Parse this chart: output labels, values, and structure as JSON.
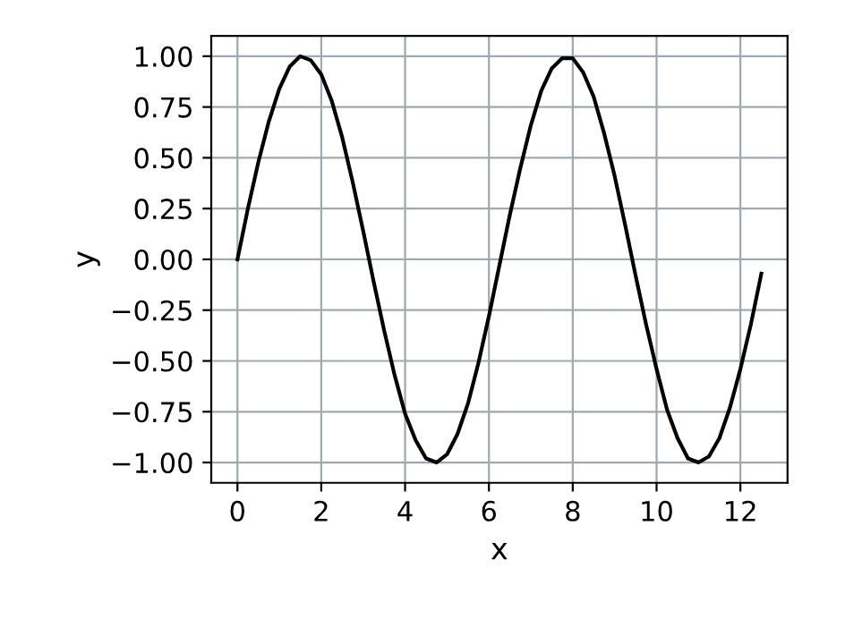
{
  "chart_data": {
    "type": "line",
    "xlabel": "x",
    "ylabel": "y",
    "x": [
      0,
      0.25,
      0.5,
      0.75,
      1,
      1.25,
      1.5,
      1.75,
      2,
      2.25,
      2.5,
      2.75,
      3,
      3.25,
      3.5,
      3.75,
      4,
      4.25,
      4.5,
      4.75,
      5,
      5.25,
      5.5,
      5.75,
      6,
      6.25,
      6.5,
      6.75,
      7,
      7.25,
      7.5,
      7.75,
      8,
      8.25,
      8.5,
      8.75,
      9,
      9.25,
      9.5,
      9.75,
      10,
      10.25,
      10.5,
      10.75,
      11,
      11.25,
      11.5,
      11.75,
      12,
      12.25,
      12.5
    ],
    "series": [
      {
        "color": "#000000",
        "values": [
          0,
          0.25,
          0.48,
          0.68,
          0.84,
          0.95,
          1.0,
          0.98,
          0.91,
          0.78,
          0.6,
          0.38,
          0.14,
          -0.11,
          -0.35,
          -0.57,
          -0.76,
          -0.89,
          -0.98,
          -1.0,
          -0.96,
          -0.86,
          -0.71,
          -0.51,
          -0.28,
          -0.03,
          0.22,
          0.45,
          0.66,
          0.83,
          0.94,
          0.99,
          0.99,
          0.92,
          0.8,
          0.62,
          0.41,
          0.17,
          -0.08,
          -0.32,
          -0.54,
          -0.74,
          -0.88,
          -0.98,
          -1.0,
          -0.97,
          -0.88,
          -0.73,
          -0.54,
          -0.32,
          -0.07
        ]
      }
    ],
    "xlim": [
      -0.625,
      13.125
    ],
    "ylim": [
      -1.1,
      1.1
    ],
    "xticks": [
      0,
      2,
      4,
      6,
      8,
      10,
      12
    ],
    "yticks": [
      {
        "value": -1,
        "label": "−1.00"
      },
      {
        "value": -0.75,
        "label": "−0.75"
      },
      {
        "value": -0.5,
        "label": "−0.50"
      },
      {
        "value": -0.25,
        "label": "−0.25"
      },
      {
        "value": 0,
        "label": "0.00"
      },
      {
        "value": 0.25,
        "label": "0.25"
      },
      {
        "value": 0.5,
        "label": "0.50"
      },
      {
        "value": 0.75,
        "label": "0.75"
      },
      {
        "value": 1,
        "label": "1.00"
      }
    ],
    "grid": true,
    "marker": "none",
    "line_style": "solid"
  }
}
